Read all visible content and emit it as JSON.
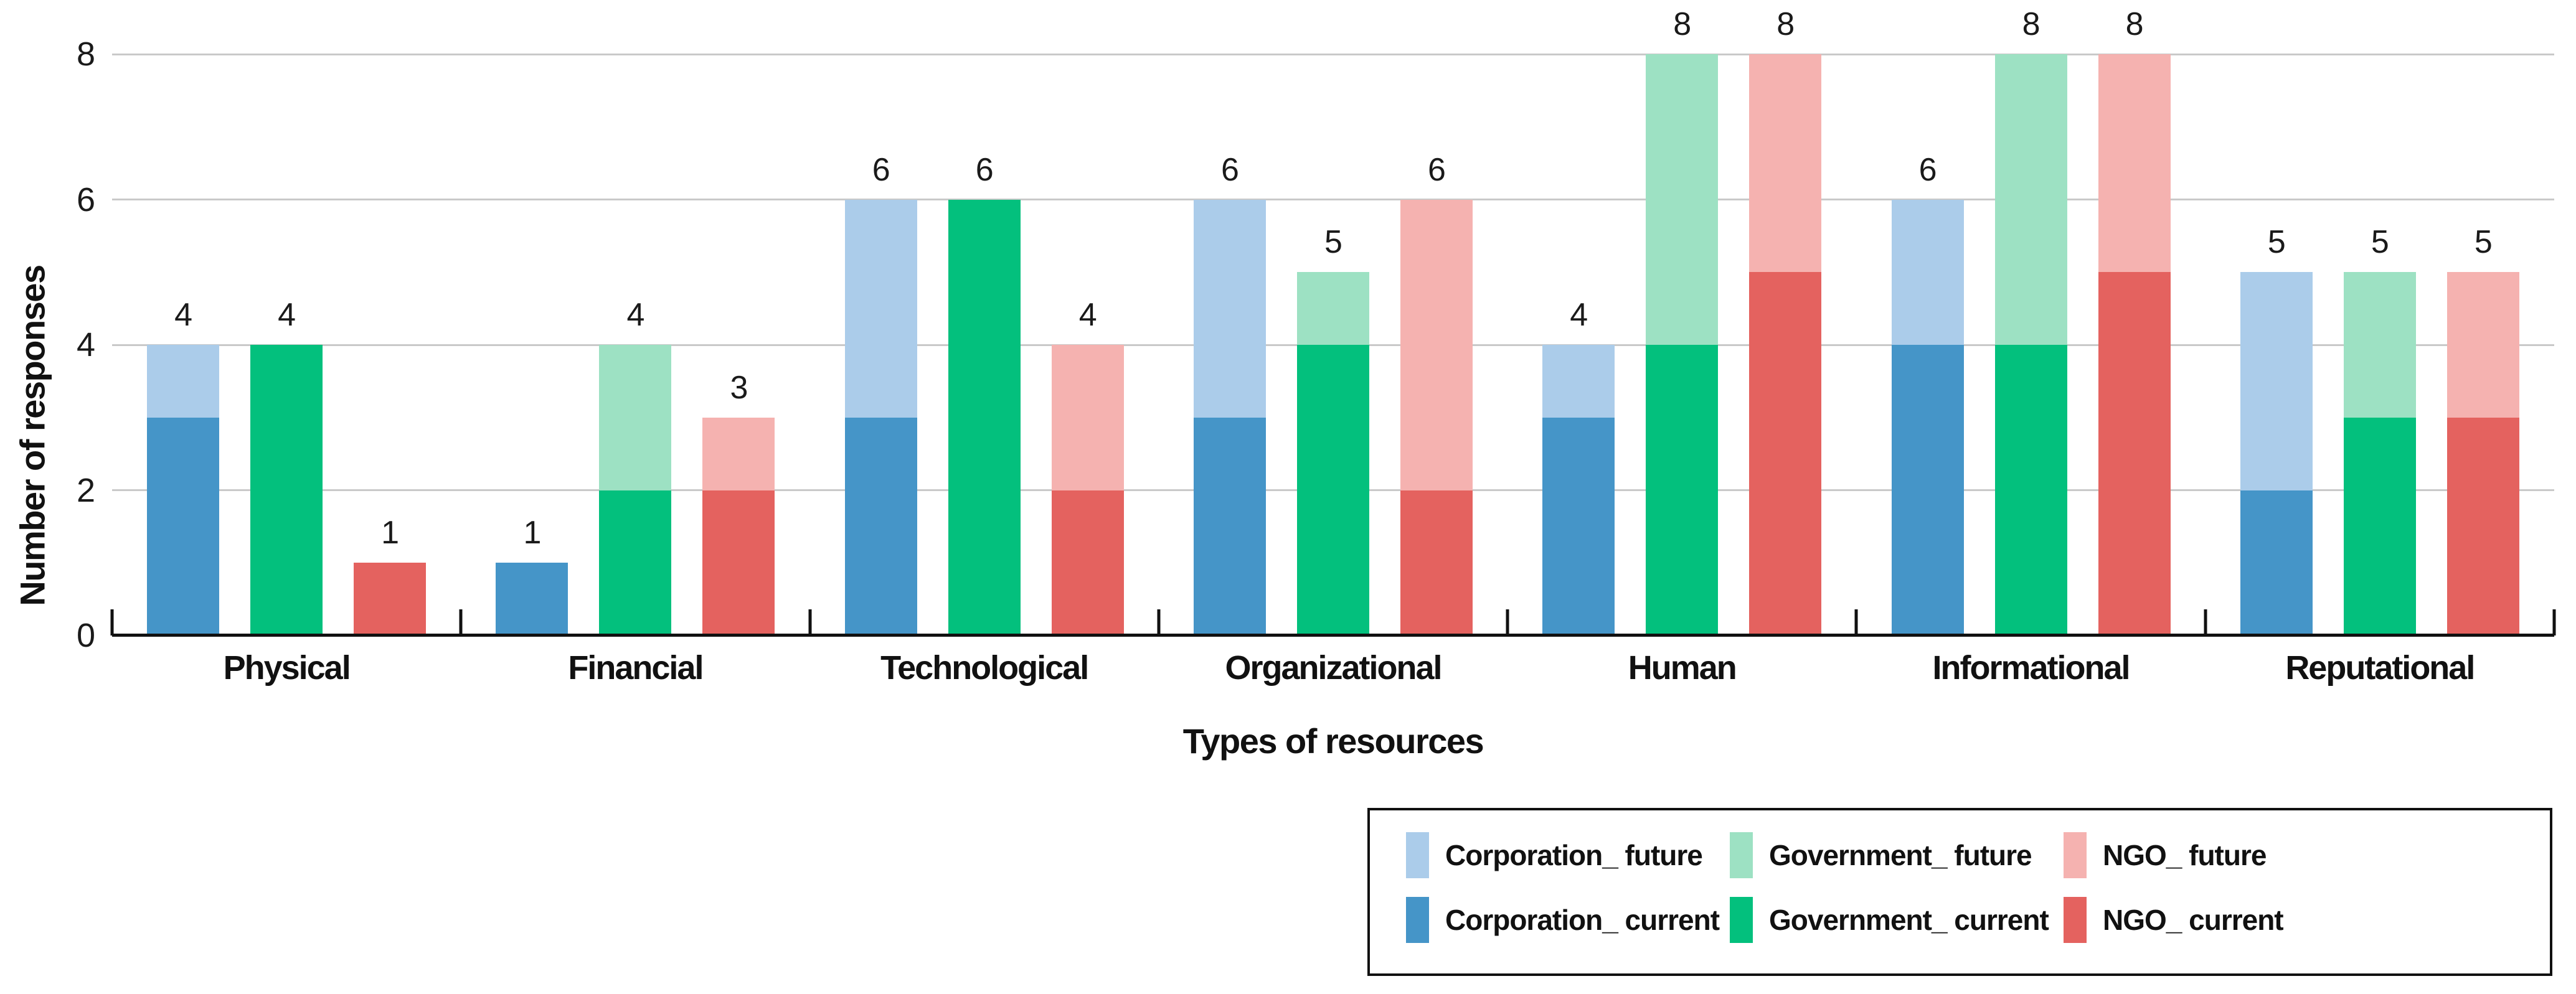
{
  "chart_data": {
    "type": "bar",
    "stacked": true,
    "title": "",
    "xlabel": "Types of resources",
    "ylabel": "Number of responses",
    "ylim": [
      0,
      8
    ],
    "yticks": [
      0,
      2,
      4,
      6,
      8
    ],
    "grid": "horizontal",
    "legend_position": "bottom-right",
    "categories": [
      "Physical",
      "Financial",
      "Technological",
      "Organizational",
      "Human",
      "Informational",
      "Reputational"
    ],
    "groups": [
      {
        "org": "Corporation",
        "current": [
          3,
          1,
          3,
          3,
          3,
          4,
          2
        ],
        "future": [
          1,
          0,
          3,
          3,
          1,
          2,
          3
        ],
        "totals": [
          4,
          1,
          6,
          6,
          4,
          6,
          5
        ]
      },
      {
        "org": "Government",
        "current": [
          4,
          2,
          6,
          4,
          4,
          4,
          3
        ],
        "future": [
          0,
          2,
          0,
          1,
          4,
          4,
          2
        ],
        "totals": [
          4,
          4,
          6,
          5,
          8,
          8,
          5
        ]
      },
      {
        "org": "NGO",
        "current": [
          1,
          2,
          2,
          2,
          5,
          5,
          3
        ],
        "future": [
          0,
          1,
          2,
          4,
          3,
          3,
          2
        ],
        "totals": [
          1,
          3,
          4,
          6,
          8,
          8,
          5
        ]
      }
    ],
    "colors": {
      "corporation_future": "#abccea",
      "corporation_current": "#4595c8",
      "government_future": "#9de1c3",
      "government_current": "#03c07d",
      "ngo_future": "#f5b2b0",
      "ngo_current": "#e4625f",
      "gridline": "#c9c9c9",
      "axis": "#111111"
    }
  },
  "legend": {
    "items": [
      {
        "key": "corporation-future",
        "label": "Corporation_ future",
        "color": "#abccea"
      },
      {
        "key": "government-future",
        "label": "Government_ future",
        "color": "#9de1c3"
      },
      {
        "key": "ngo-future",
        "label": "NGO_ future",
        "color": "#f5b2b0"
      },
      {
        "key": "corporation-current",
        "label": "Corporation_ current",
        "color": "#4595c8"
      },
      {
        "key": "government-current",
        "label": "Government_ current",
        "color": "#03c07d"
      },
      {
        "key": "ngo-current",
        "label": "NGO_ current",
        "color": "#e4625f"
      }
    ]
  }
}
